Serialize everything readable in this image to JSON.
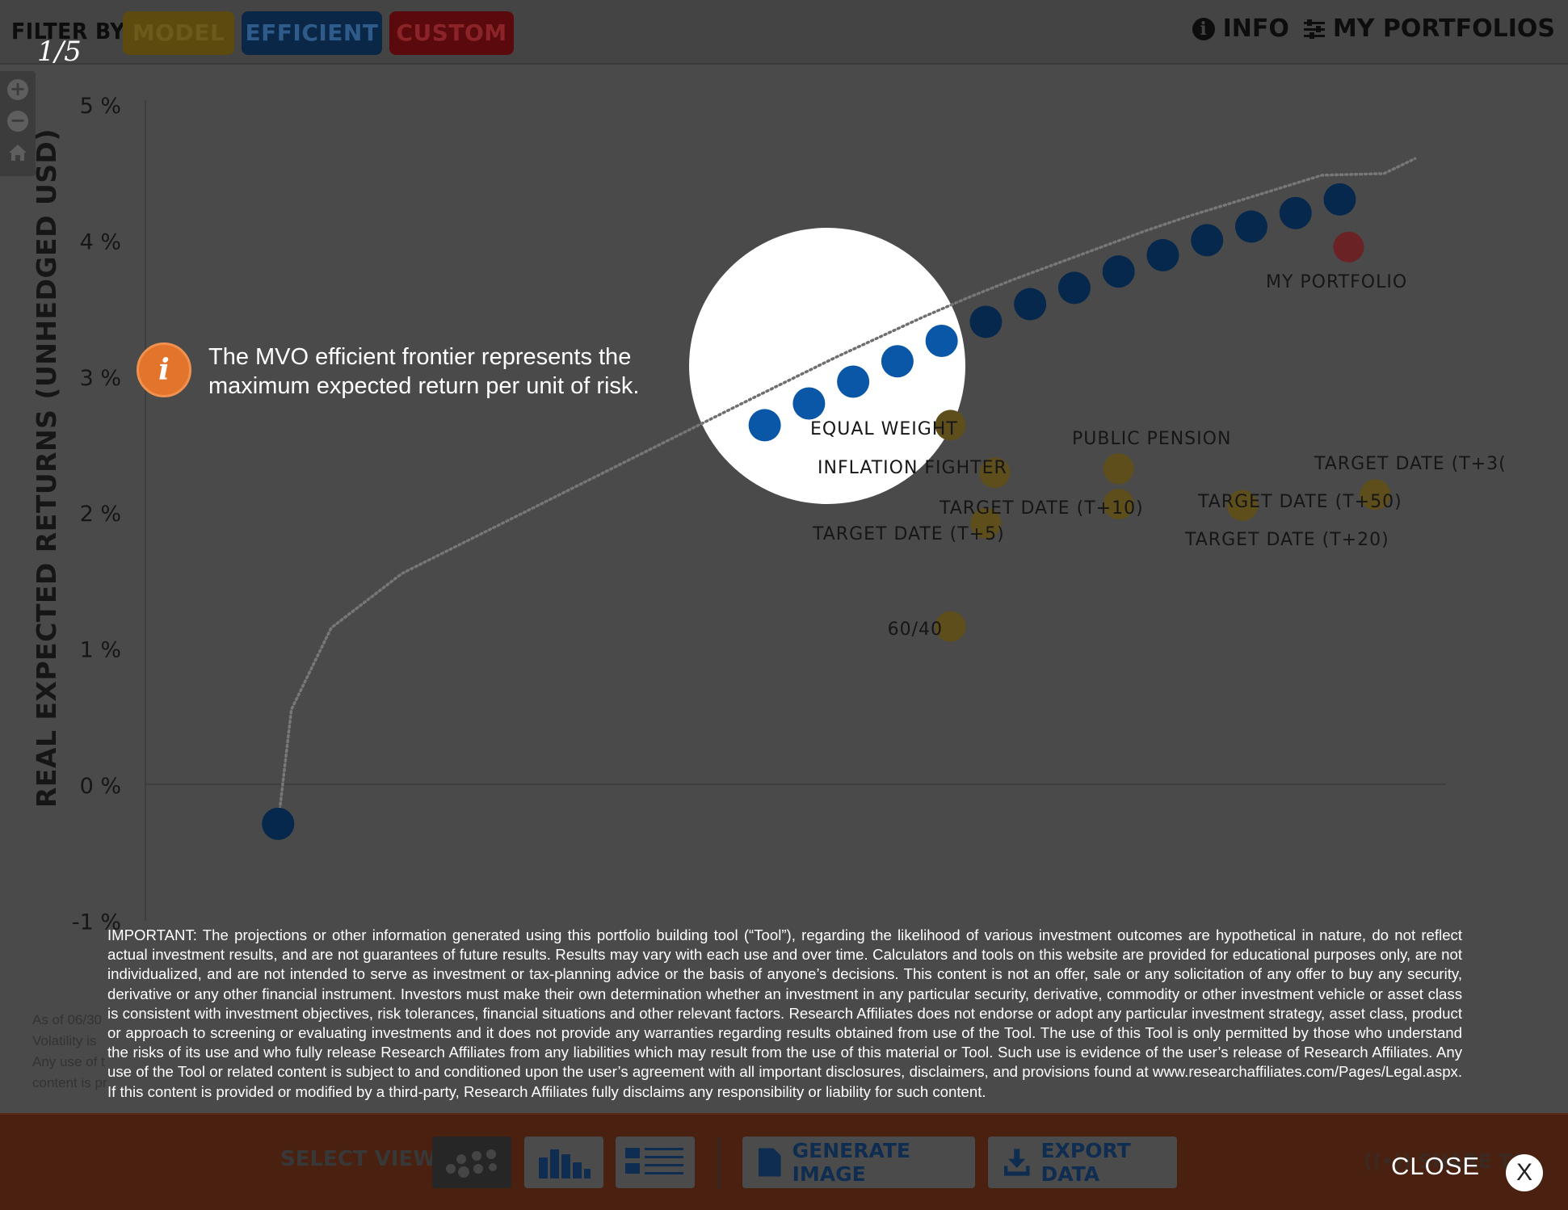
{
  "header": {
    "filter_label": "FILTER BY:",
    "filters": [
      {
        "label": "MODEL",
        "color": "#c9a227"
      },
      {
        "label": "EFFICIENT",
        "color": "#0a4f96"
      },
      {
        "label": "CUSTOM",
        "color": "#b51f24"
      }
    ],
    "slide_counter": "1/5",
    "info_label": "INFO",
    "portfolios_label": "MY PORTFOLIOS"
  },
  "zoom_controls": [
    "zoom-in-icon",
    "zoom-out-icon",
    "home-icon"
  ],
  "callout": {
    "icon": "i",
    "text": "The MVO efficient frontier represents the maximum expected return per unit of risk."
  },
  "chart_data": {
    "type": "scatter",
    "ylabel": "REAL EXPECTED RETURNS (UNHEDGED USD)",
    "y_ticks": [
      "5 %",
      "4 %",
      "3 %",
      "2 %",
      "1 %",
      "0 %",
      "-1 %"
    ],
    "ylim": [
      -1,
      5
    ],
    "xlim": [
      0,
      14.5
    ],
    "series": [
      {
        "name": "Efficient",
        "color": "#0a4f96",
        "points": [
          {
            "x": 1.5,
            "y": -0.29
          },
          {
            "x": 7.0,
            "y": 2.64
          },
          {
            "x": 7.5,
            "y": 2.8
          },
          {
            "x": 8.0,
            "y": 2.96
          },
          {
            "x": 8.5,
            "y": 3.11
          },
          {
            "x": 9.0,
            "y": 3.26
          },
          {
            "x": 9.5,
            "y": 3.4
          },
          {
            "x": 10.0,
            "y": 3.53
          },
          {
            "x": 10.5,
            "y": 3.65
          },
          {
            "x": 11.0,
            "y": 3.77
          },
          {
            "x": 11.5,
            "y": 3.89
          },
          {
            "x": 12.0,
            "y": 4.0
          },
          {
            "x": 12.5,
            "y": 4.1
          },
          {
            "x": 13.0,
            "y": 4.2
          },
          {
            "x": 13.5,
            "y": 4.3
          }
        ]
      },
      {
        "name": "Model",
        "color": "#c9a227",
        "points": [
          {
            "x": 9.1,
            "y": 2.64,
            "label": "EQUAL WEIGHT"
          },
          {
            "x": 9.6,
            "y": 2.29,
            "label": "INFLATION FIGHTER"
          },
          {
            "x": 11.0,
            "y": 2.32,
            "label": "PUBLIC PENSION"
          },
          {
            "x": 11.0,
            "y": 2.06,
            "label": "TARGET DATE (T+10)"
          },
          {
            "x": 9.5,
            "y": 1.92,
            "label": "TARGET DATE (T+5)"
          },
          {
            "x": 12.4,
            "y": 2.05,
            "label": "TARGET DATE (T+50)"
          },
          {
            "x": 12.4,
            "y": 2.05,
            "label": "TARGET DATE (T+20)"
          },
          {
            "x": 13.9,
            "y": 2.13,
            "label": "TARGET DATE (T+3("
          },
          {
            "x": 9.1,
            "y": 1.16,
            "label": "60/40"
          }
        ]
      },
      {
        "name": "Custom",
        "color": "#b51f24",
        "points": [
          {
            "x": 13.6,
            "y": 3.95,
            "label": "MY PORTFOLIO"
          }
        ]
      }
    ],
    "frontier_line": "dotted"
  },
  "notes": [
    "As of 06/30",
    "Volatility is",
    "Any use of t",
    "content is pr"
  ],
  "disclaimer": "IMPORTANT: The projections or other information generated using this portfolio building tool (“Tool”), regarding the likelihood of various investment outcomes are hypothetical in nature, do not reflect actual investment results, and are not guarantees of future results. Results may vary with each use and over time.  Calculators and tools on this website are provided for educational purposes only, are not individualized, and are not intended to serve as investment or tax-planning advice or the basis of anyone’s decisions.  This content is not an offer, sale or any solicitation of any offer to buy any security, derivative or any other financial instrument.  Investors must make their own determination whether an investment in any particular security, derivative, commodity or other investment vehicle or asset class is consistent with investment objectives, risk tolerances, financial situations and other relevant factors. Research Affiliates does not endorse or adopt any particular investment strategy, asset class, product or approach to screening or evaluating investments and it does not provide any warranties regarding results obtained from use of the Tool.  The use of this Tool is only permitted by those who understand the risks of its use and who fully release Research Affiliates from any liabilities which may result from the use of this material or Tool.  Such use is evidence of the user’s  release of Research Affiliates. Any use of the Tool or related content is subject to and conditioned upon the user’s agreement with all important disclosures, disclaimers, and provisions found at www.researchaffiliates.com/Pages/Legal.aspx.  If this content is provided or modified by a third-party, Research Affiliates fully disclaims any responsibility or liability for such content.",
  "footer": {
    "select_view_label": "SELECT VIEW:",
    "views": [
      "scatter-view-icon",
      "bar-chart-view-icon",
      "list-view-icon"
    ],
    "generate_image_label": "GENERATE IMAGE",
    "export_data_label": "EXPORT DATA",
    "share_label": "SHARE TO",
    "close_label": "CLOSE",
    "close_icon": "X"
  }
}
